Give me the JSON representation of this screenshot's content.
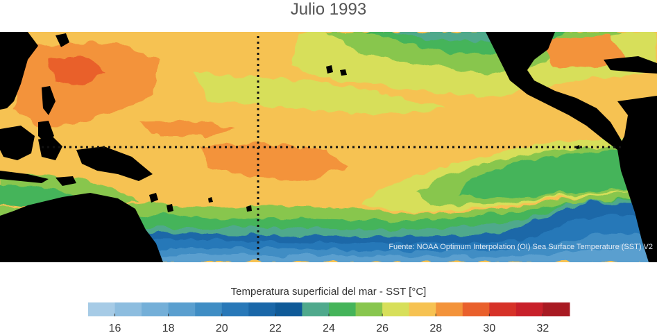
{
  "title": "Julio 1993",
  "source": "Fuente: NOAA Optimum Interpolation (OI) Sea Surface Temperature (SST) V2",
  "colorbar": {
    "label": "Temperatura superficial del mar - SST  [°C]",
    "min": 15,
    "max": 33,
    "step": 1,
    "tick_values": [
      16,
      18,
      20,
      22,
      24,
      26,
      28,
      30,
      32
    ],
    "tick_labels": [
      "16",
      "18",
      "20",
      "22",
      "24",
      "26",
      "28",
      "30",
      "32"
    ],
    "colors": [
      "#a6cbe6",
      "#8dbddf",
      "#74afd8",
      "#5a9fcf",
      "#3f8dc4",
      "#2878b8",
      "#1a67a8",
      "#0f5a98",
      "#4fa98c",
      "#45b45a",
      "#88c64e",
      "#d7df5a",
      "#f6c252",
      "#f3933a",
      "#e9602c",
      "#d63228",
      "#c8202a",
      "#a81a22"
    ]
  },
  "legend_colors": {
    "land": "#000000",
    "guides": "#111111"
  }
}
